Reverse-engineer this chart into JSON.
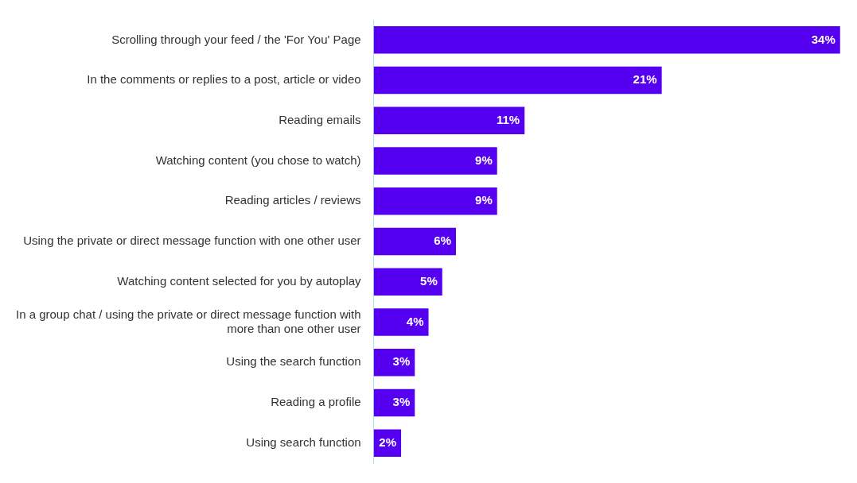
{
  "chart_data": {
    "type": "bar",
    "orientation": "horizontal",
    "categories": [
      "Scrolling through your feed / the 'For You' Page",
      "In the comments or replies to a post, article or video",
      "Reading emails",
      "Watching content (you chose to watch)",
      "Reading articles / reviews",
      "Using the private or direct message function with one other user",
      "Watching content selected for you by autoplay",
      "In a group chat / using the private or direct message function with more than one other user",
      "Using the search function",
      "Reading a profile",
      "Using search function"
    ],
    "values": [
      34,
      21,
      11,
      9,
      9,
      6,
      5,
      4,
      3,
      3,
      2
    ],
    "value_labels": [
      "34%",
      "21%",
      "11%",
      "9%",
      "9%",
      "6%",
      "5%",
      "4%",
      "3%",
      "3%",
      "2%"
    ],
    "color": "#5500f0",
    "legend": false,
    "grid": false
  }
}
